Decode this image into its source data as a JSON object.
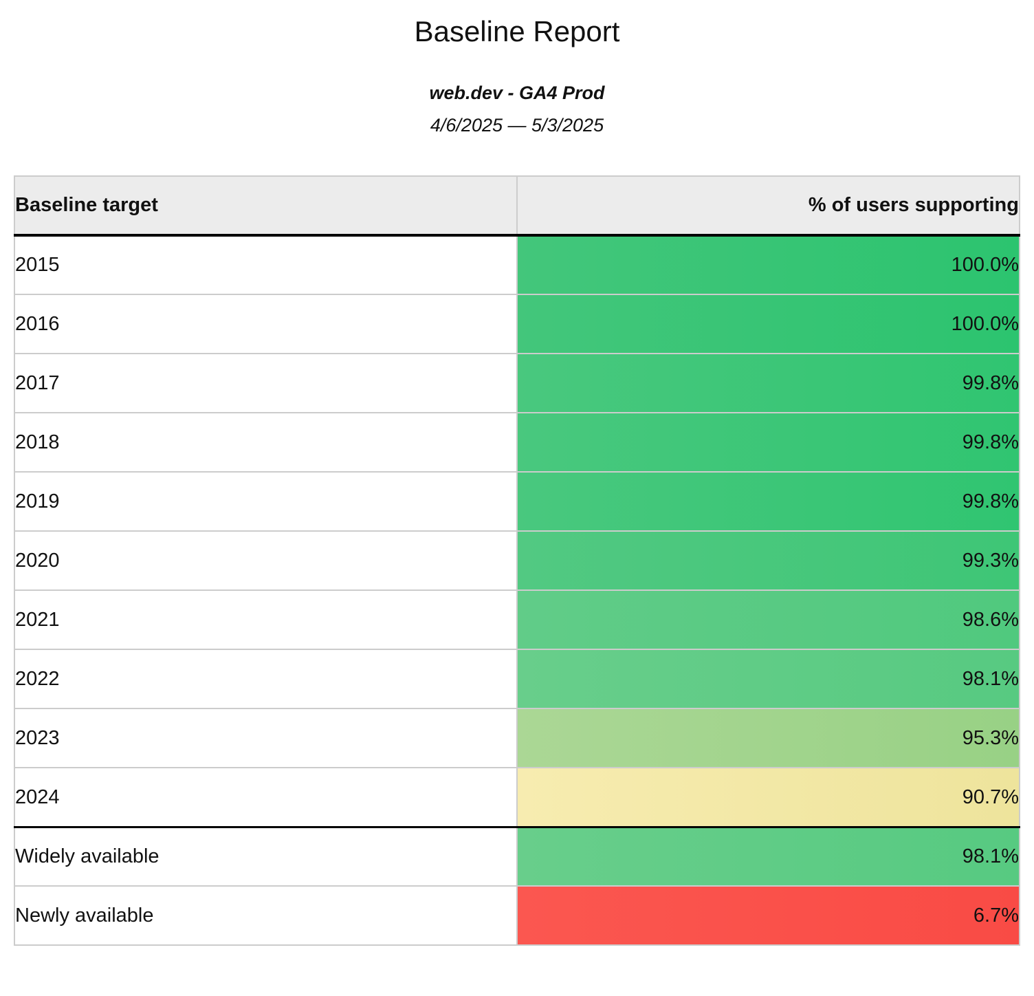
{
  "report": {
    "title": "Baseline Report",
    "subtitle": "web.dev - GA4 Prod",
    "date_range": "4/6/2025 — 5/3/2025"
  },
  "table": {
    "columns": [
      "Baseline target",
      "% of users supporting"
    ],
    "rows": [
      {
        "target": "2015",
        "value": "100.0%",
        "color_left": "#43c67b",
        "color_right": "#2cc46f",
        "section": "year",
        "divider_above": false
      },
      {
        "target": "2016",
        "value": "100.0%",
        "color_left": "#43c67b",
        "color_right": "#2cc46f",
        "section": "year",
        "divider_above": false
      },
      {
        "target": "2017",
        "value": "99.8%",
        "color_left": "#49c87e",
        "color_right": "#30c571",
        "section": "year",
        "divider_above": false
      },
      {
        "target": "2018",
        "value": "99.8%",
        "color_left": "#49c87e",
        "color_right": "#30c571",
        "section": "year",
        "divider_above": false
      },
      {
        "target": "2019",
        "value": "99.8%",
        "color_left": "#49c87e",
        "color_right": "#30c571",
        "section": "year",
        "divider_above": false
      },
      {
        "target": "2020",
        "value": "99.3%",
        "color_left": "#52c982",
        "color_right": "#3ec676",
        "section": "year",
        "divider_above": false
      },
      {
        "target": "2021",
        "value": "98.6%",
        "color_left": "#61cc88",
        "color_right": "#50c97e",
        "section": "year",
        "divider_above": false
      },
      {
        "target": "2022",
        "value": "98.1%",
        "color_left": "#68ce8b",
        "color_right": "#57ca81",
        "section": "year",
        "divider_above": false
      },
      {
        "target": "2023",
        "value": "95.3%",
        "color_left": "#abd795",
        "color_right": "#98d185",
        "section": "year",
        "divider_above": false
      },
      {
        "target": "2024",
        "value": "90.7%",
        "color_left": "#f7ecb0",
        "color_right": "#eee49c",
        "section": "year",
        "divider_above": false
      },
      {
        "target": "Widely available",
        "value": "98.1%",
        "color_left": "#68ce8b",
        "color_right": "#57ca81",
        "section": "availability",
        "divider_above": true
      },
      {
        "target": "Newly available",
        "value": "6.7%",
        "color_left": "#fb5750",
        "color_right": "#f94b45",
        "section": "availability",
        "divider_above": false
      }
    ]
  },
  "theme": {
    "page_bg": "#ffffff",
    "text": "#111111",
    "header_bg": "#ececec",
    "grid_border": "#cccccc",
    "heavy_border": "#000000"
  }
}
